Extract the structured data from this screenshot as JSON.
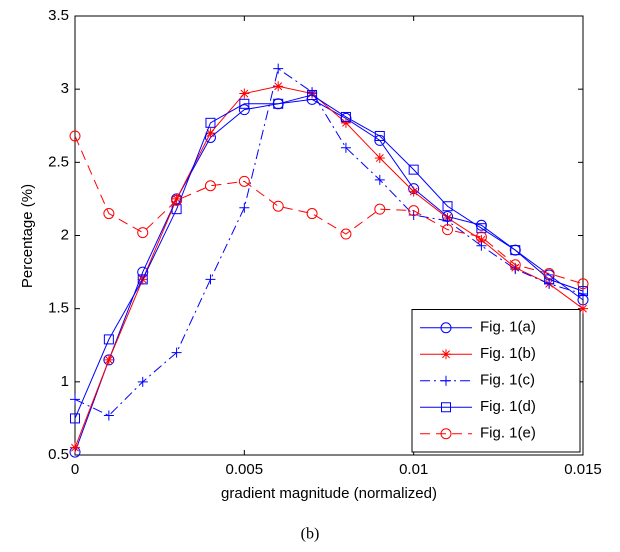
{
  "chart_data": {
    "type": "line",
    "xlabel": "gradient magnitude (normalized)",
    "ylabel": "Percentage (%)",
    "caption": "(b)",
    "x": [
      0,
      0.001,
      0.002,
      0.003,
      0.004,
      0.005,
      0.006,
      0.007,
      0.008,
      0.009,
      0.01,
      0.011,
      0.012,
      0.013,
      0.014,
      0.015
    ],
    "xlim": [
      0,
      0.015
    ],
    "xticks": [
      0,
      0.005,
      0.01,
      0.015
    ],
    "ylim": [
      0.5,
      3.5
    ],
    "yticks": [
      0.5,
      1,
      1.5,
      2,
      2.5,
      3,
      3.5
    ],
    "grid": false,
    "legend": "lower right",
    "series": [
      {
        "name": "Fig. 1(a)",
        "color": "#0000ff",
        "marker": "circle",
        "dash": "solid",
        "values": [
          0.52,
          1.15,
          1.75,
          2.25,
          2.67,
          2.86,
          2.9,
          2.93,
          2.8,
          2.65,
          2.32,
          2.13,
          2.07,
          1.9,
          1.73,
          1.56
        ]
      },
      {
        "name": "Fig. 1(b)",
        "color": "#ff0000",
        "marker": "star",
        "dash": "solid",
        "values": [
          0.55,
          1.15,
          1.7,
          2.25,
          2.7,
          2.97,
          3.02,
          2.97,
          2.77,
          2.53,
          2.3,
          2.12,
          1.97,
          1.78,
          1.67,
          1.5
        ]
      },
      {
        "name": "Fig. 1(c)",
        "color": "#0000ff",
        "marker": "plus",
        "dash": "dash-dot",
        "values": [
          0.88,
          0.77,
          1.0,
          1.2,
          1.7,
          2.19,
          3.14,
          2.98,
          2.6,
          2.38,
          2.14,
          2.1,
          1.93,
          1.77,
          1.67,
          1.6
        ]
      },
      {
        "name": "Fig. 1(d)",
        "color": "#0000ff",
        "marker": "square",
        "dash": "solid",
        "values": [
          0.75,
          1.29,
          1.7,
          2.18,
          2.77,
          2.9,
          2.9,
          2.96,
          2.81,
          2.68,
          2.45,
          2.2,
          2.05,
          1.9,
          1.7,
          1.62
        ]
      },
      {
        "name": "Fig. 1(e)",
        "color": "#ff0000",
        "marker": "circle",
        "dash": "dashed",
        "values": [
          2.68,
          2.15,
          2.02,
          2.24,
          2.34,
          2.37,
          2.2,
          2.15,
          2.01,
          2.18,
          2.17,
          2.04,
          1.99,
          1.8,
          1.74,
          1.67
        ]
      }
    ]
  }
}
